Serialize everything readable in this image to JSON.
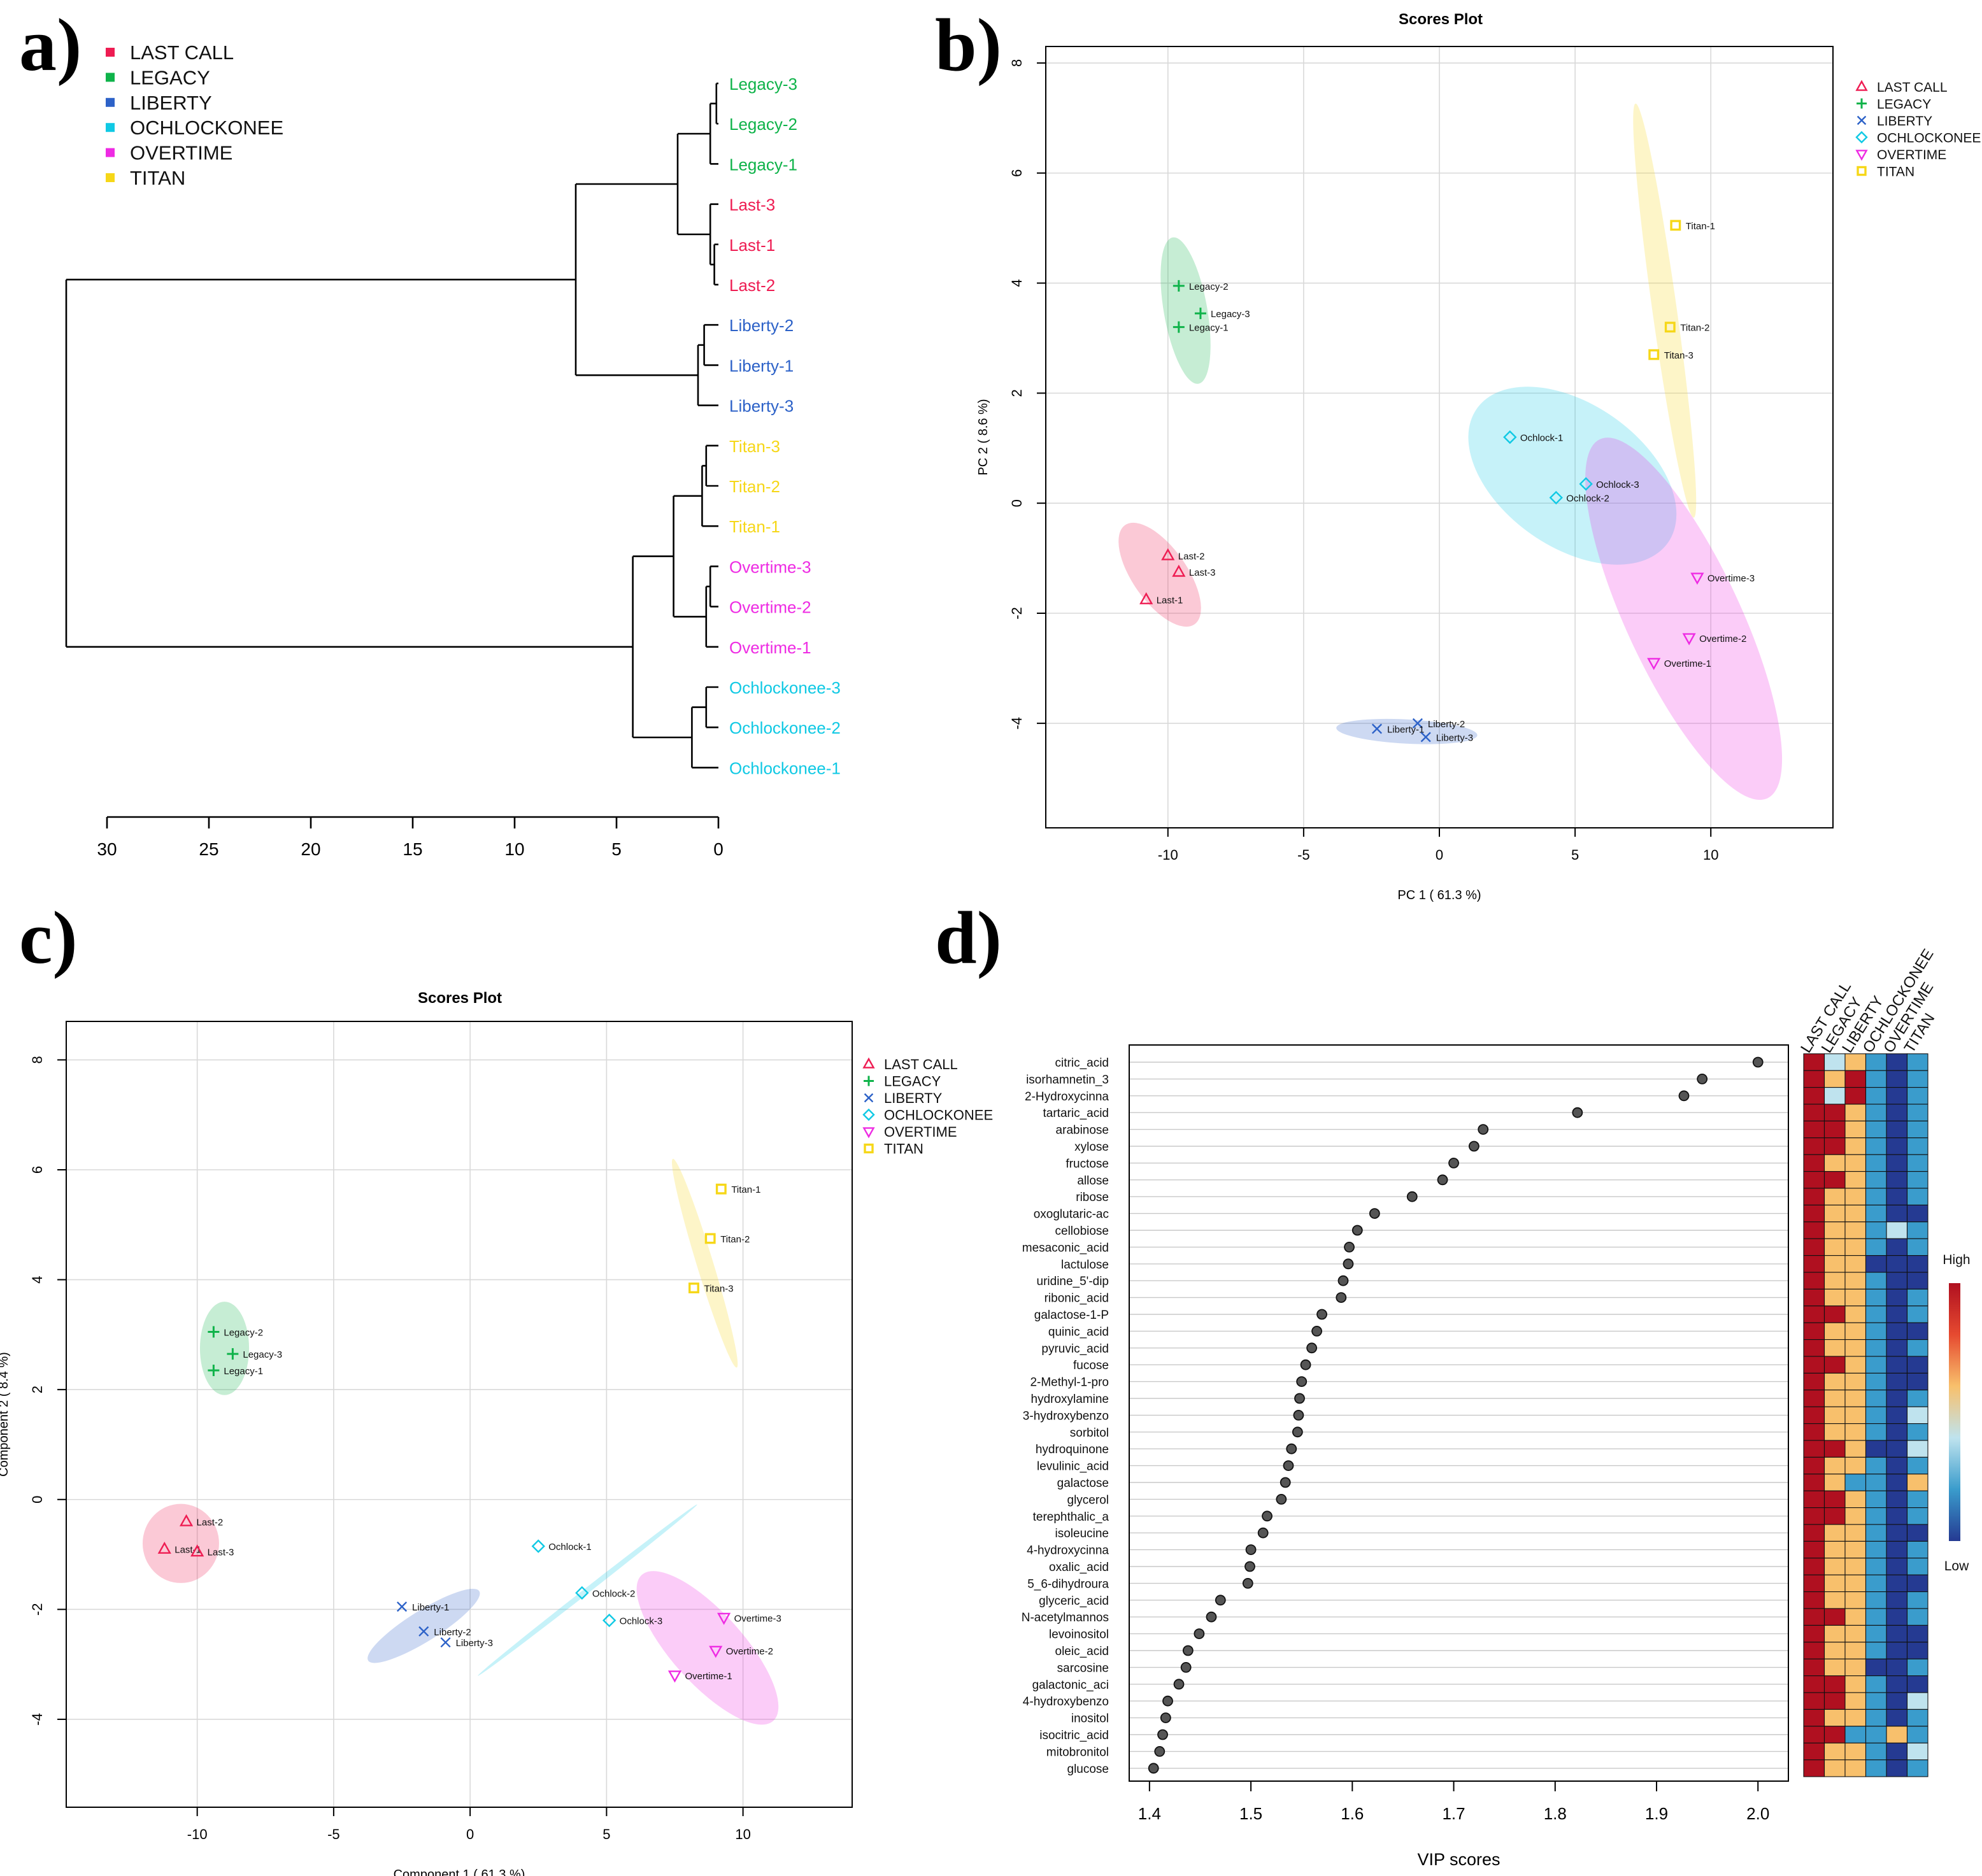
{
  "chart_data": [
    {
      "panel": "a)",
      "type": "dendrogram",
      "title": "",
      "legend": [
        {
          "label": "LAST CALL",
          "color": "#ee1c52"
        },
        {
          "label": "LEGACY",
          "color": "#0fb34a"
        },
        {
          "label": "LIBERTY",
          "color": "#2d62c8"
        },
        {
          "label": "OCHLOCKONEE",
          "color": "#10c9e4"
        },
        {
          "label": "OVERTIME",
          "color": "#ee2be3"
        },
        {
          "label": "TITAN",
          "color": "#f6d718"
        }
      ],
      "leaves": [
        {
          "label": "Legacy-3",
          "color": "#0fb34a"
        },
        {
          "label": "Legacy-2",
          "color": "#0fb34a"
        },
        {
          "label": "Legacy-1",
          "color": "#0fb34a"
        },
        {
          "label": "Last-3",
          "color": "#ee1c52"
        },
        {
          "label": "Last-1",
          "color": "#ee1c52"
        },
        {
          "label": "Last-2",
          "color": "#ee1c52"
        },
        {
          "label": "Liberty-2",
          "color": "#2d62c8"
        },
        {
          "label": "Liberty-1",
          "color": "#2d62c8"
        },
        {
          "label": "Liberty-3",
          "color": "#2d62c8"
        },
        {
          "label": "Titan-3",
          "color": "#f6d718"
        },
        {
          "label": "Titan-2",
          "color": "#f6d718"
        },
        {
          "label": "Titan-1",
          "color": "#f6d718"
        },
        {
          "label": "Overtime-3",
          "color": "#ee2be3"
        },
        {
          "label": "Overtime-2",
          "color": "#ee2be3"
        },
        {
          "label": "Overtime-1",
          "color": "#ee2be3"
        },
        {
          "label": "Ochlockonee-3",
          "color": "#10c9e4"
        },
        {
          "label": "Ochlockonee-2",
          "color": "#10c9e4"
        },
        {
          "label": "Ochlockonee-1",
          "color": "#10c9e4"
        }
      ],
      "merge_heights": {
        "Legacy-3+Legacy-2": 0.1,
        "+Legacy-1": 0.4,
        "Last-1+Last-2": 0.2,
        "+Last-3": 0.4,
        "Legacy+Last": 2.0,
        "Liberty-2+Liberty-1": 0.7,
        "+Liberty-3": 1.0,
        "LegacyLast+Liberty": 7.0,
        "Titan-3+Titan-2": 0.6,
        "+Titan-1": 0.8,
        "Overtime-3+Overtime-2": 0.4,
        "+Overtime-1": 0.6,
        "Titan+Overtime": 2.2,
        "Ochlockonee-3+Ochlockonee-2": 0.6,
        "+Ochlockonee-1": 1.3,
        "TitanOvertime+Ochlockonee": 4.2,
        "root": 32.0
      },
      "xlim": [
        0,
        31
      ],
      "ticks": [
        "30",
        "25",
        "20",
        "15",
        "10",
        "5",
        "0"
      ]
    },
    {
      "panel": "b)",
      "type": "scatter",
      "title": "Scores Plot",
      "xlabel": "PC 1 ( 61.3 %)",
      "ylabel": "PC 2 ( 8.6 %)",
      "xlim": [
        -14.5,
        14.5
      ],
      "ylim": [
        -5.9,
        8.3
      ],
      "xticks": [
        "-10",
        "-5",
        "0",
        "5",
        "10"
      ],
      "yticks": [
        "-4",
        "-2",
        "0",
        "2",
        "4",
        "6",
        "8"
      ],
      "legend": [
        {
          "label": "LAST CALL",
          "color": "#ee1c52",
          "marker": "triangle"
        },
        {
          "label": "LEGACY",
          "color": "#0fb34a",
          "marker": "plus"
        },
        {
          "label": "LIBERTY",
          "color": "#2d62c8",
          "marker": "cross"
        },
        {
          "label": "OCHLOCKONEE",
          "color": "#10c9e4",
          "marker": "diamond"
        },
        {
          "label": "OVERTIME",
          "color": "#ee2be3",
          "marker": "triangle-down"
        },
        {
          "label": "TITAN",
          "color": "#f6d718",
          "marker": "square"
        }
      ],
      "points": [
        {
          "label": "Last-2",
          "group": 0,
          "x": -10.0,
          "y": -0.95
        },
        {
          "label": "Last-3",
          "group": 0,
          "x": -9.6,
          "y": -1.25
        },
        {
          "label": "Last-1",
          "group": 0,
          "x": -10.8,
          "y": -1.75
        },
        {
          "label": "Legacy-2",
          "group": 1,
          "x": -9.6,
          "y": 3.95
        },
        {
          "label": "Legacy-3",
          "group": 1,
          "x": -8.8,
          "y": 3.45
        },
        {
          "label": "Legacy-1",
          "group": 1,
          "x": -9.6,
          "y": 3.2
        },
        {
          "label": "Liberty-2",
          "group": 2,
          "x": -0.8,
          "y": -4.0
        },
        {
          "label": "Liberty-1",
          "group": 2,
          "x": -2.3,
          "y": -4.1
        },
        {
          "label": "Liberty-3",
          "group": 2,
          "x": -0.5,
          "y": -4.25
        },
        {
          "label": "Ochlock-1",
          "group": 3,
          "x": 2.6,
          "y": 1.2
        },
        {
          "label": "Ochlock-3",
          "group": 3,
          "x": 5.4,
          "y": 0.35
        },
        {
          "label": "Ochlock-2",
          "group": 3,
          "x": 4.3,
          "y": 0.1
        },
        {
          "label": "Overtime-3",
          "group": 4,
          "x": 9.5,
          "y": -1.35
        },
        {
          "label": "Overtime-2",
          "group": 4,
          "x": 9.2,
          "y": -2.45
        },
        {
          "label": "Overtime-1",
          "group": 4,
          "x": 7.9,
          "y": -2.9
        },
        {
          "label": "Titan-1",
          "group": 5,
          "x": 8.7,
          "y": 5.05
        },
        {
          "label": "Titan-2",
          "group": 5,
          "x": 8.5,
          "y": 3.2
        },
        {
          "label": "Titan-3",
          "group": 5,
          "x": 7.9,
          "y": 2.7
        }
      ],
      "ellipses": [
        {
          "group": 0,
          "cx": -10.3,
          "cy": -1.3,
          "rx": 1.0,
          "ry": 1.1,
          "angle": 35
        },
        {
          "group": 1,
          "cx": -9.35,
          "cy": 3.5,
          "rx": 0.8,
          "ry": 1.35,
          "angle": 10
        },
        {
          "group": 2,
          "cx": -1.2,
          "cy": -4.15,
          "rx": 2.6,
          "ry": 0.22,
          "angle": -3
        },
        {
          "group": 3,
          "cx": 4.9,
          "cy": 0.5,
          "rx": 4.3,
          "ry": 1.3,
          "angle": -35
        },
        {
          "group": 4,
          "cx": 9.0,
          "cy": -2.1,
          "rx": 2.1,
          "ry": 3.6,
          "angle": 25
        },
        {
          "group": 5,
          "cx": 8.3,
          "cy": 3.5,
          "rx": 0.45,
          "ry": 3.8,
          "angle": 8
        }
      ]
    },
    {
      "panel": "c)",
      "type": "scatter",
      "title": "Scores Plot",
      "xlabel": "Component 1 ( 61.3 %)",
      "ylabel": "Component 2 ( 8.4 %)",
      "xlim": [
        -14.8,
        14.0
      ],
      "ylim": [
        -5.6,
        8.7
      ],
      "xticks": [
        "-10",
        "-5",
        "0",
        "5",
        "10"
      ],
      "yticks": [
        "-4",
        "-2",
        "0",
        "2",
        "4",
        "6",
        "8"
      ],
      "legend": [
        {
          "label": "LAST CALL",
          "color": "#ee1c52",
          "marker": "triangle"
        },
        {
          "label": "LEGACY",
          "color": "#0fb34a",
          "marker": "plus"
        },
        {
          "label": "LIBERTY",
          "color": "#2d62c8",
          "marker": "cross"
        },
        {
          "label": "OCHLOCKONEE",
          "color": "#10c9e4",
          "marker": "diamond"
        },
        {
          "label": "OVERTIME",
          "color": "#ee2be3",
          "marker": "triangle-down"
        },
        {
          "label": "TITAN",
          "color": "#f6d718",
          "marker": "square"
        }
      ],
      "points": [
        {
          "label": "Last-2",
          "group": 0,
          "x": -10.4,
          "y": -0.4
        },
        {
          "label": "Last-1",
          "group": 0,
          "x": -11.2,
          "y": -0.9
        },
        {
          "label": "Last-3",
          "group": 0,
          "x": -10.0,
          "y": -0.95
        },
        {
          "label": "Legacy-2",
          "group": 1,
          "x": -9.4,
          "y": 3.05
        },
        {
          "label": "Legacy-3",
          "group": 1,
          "x": -8.7,
          "y": 2.65
        },
        {
          "label": "Legacy-1",
          "group": 1,
          "x": -9.4,
          "y": 2.35
        },
        {
          "label": "Liberty-1",
          "group": 2,
          "x": -2.5,
          "y": -1.95
        },
        {
          "label": "Liberty-2",
          "group": 2,
          "x": -1.7,
          "y": -2.4
        },
        {
          "label": "Liberty-3",
          "group": 2,
          "x": -0.9,
          "y": -2.6
        },
        {
          "label": "Ochlock-1",
          "group": 3,
          "x": 2.5,
          "y": -0.85
        },
        {
          "label": "Ochlock-2",
          "group": 3,
          "x": 4.1,
          "y": -1.7
        },
        {
          "label": "Ochlock-3",
          "group": 3,
          "x": 5.1,
          "y": -2.2
        },
        {
          "label": "Overtime-3",
          "group": 4,
          "x": 9.3,
          "y": -2.15
        },
        {
          "label": "Overtime-2",
          "group": 4,
          "x": 9.0,
          "y": -2.75
        },
        {
          "label": "Overtime-1",
          "group": 4,
          "x": 7.5,
          "y": -3.2
        },
        {
          "label": "Titan-1",
          "group": 5,
          "x": 9.2,
          "y": 5.65
        },
        {
          "label": "Titan-2",
          "group": 5,
          "x": 8.8,
          "y": 4.75
        },
        {
          "label": "Titan-3",
          "group": 5,
          "x": 8.2,
          "y": 3.85
        }
      ],
      "ellipses": [
        {
          "group": 0,
          "cx": -10.6,
          "cy": -0.8,
          "rx": 1.4,
          "ry": 0.72,
          "angle": 0
        },
        {
          "group": 1,
          "cx": -9.0,
          "cy": 2.75,
          "rx": 0.9,
          "ry": 0.85,
          "angle": 0
        },
        {
          "group": 2,
          "cx": -1.7,
          "cy": -2.3,
          "rx": 2.4,
          "ry": 0.28,
          "angle": 32
        },
        {
          "group": 3,
          "cx": 4.3,
          "cy": -1.65,
          "rx": 5.1,
          "ry": 0.05,
          "angle": 38
        },
        {
          "group": 4,
          "cx": 8.7,
          "cy": -2.7,
          "rx": 3.6,
          "ry": 0.65,
          "angle": -48
        },
        {
          "group": 5,
          "cx": 8.6,
          "cy": 4.3,
          "rx": 4.0,
          "ry": 0.15,
          "angle": -73
        }
      ]
    },
    {
      "panel": "d)",
      "type": "dot+heatmap",
      "title": "",
      "xlabel": "VIP scores",
      "xlim": [
        1.38,
        2.03
      ],
      "xticks": [
        "1.4",
        "1.5",
        "1.6",
        "1.7",
        "1.8",
        "1.9",
        "2.0"
      ],
      "features": [
        {
          "name": "citric_acid",
          "vip": 2.0
        },
        {
          "name": "isorhamnetin_3",
          "vip": 1.945
        },
        {
          "name": "2-Hydroxycinna",
          "vip": 1.927
        },
        {
          "name": "tartaric_acid",
          "vip": 1.822
        },
        {
          "name": "arabinose",
          "vip": 1.729
        },
        {
          "name": "xylose",
          "vip": 1.72
        },
        {
          "name": "fructose",
          "vip": 1.7
        },
        {
          "name": "allose",
          "vip": 1.689
        },
        {
          "name": "ribose",
          "vip": 1.659
        },
        {
          "name": "oxoglutaric-ac",
          "vip": 1.622
        },
        {
          "name": "cellobiose",
          "vip": 1.605
        },
        {
          "name": "mesaconic_acid",
          "vip": 1.597
        },
        {
          "name": "lactulose",
          "vip": 1.596
        },
        {
          "name": "uridine_5'-dip",
          "vip": 1.591
        },
        {
          "name": "ribonic_acid",
          "vip": 1.589
        },
        {
          "name": "galactose-1-P",
          "vip": 1.57
        },
        {
          "name": "quinic_acid",
          "vip": 1.565
        },
        {
          "name": "pyruvic_acid",
          "vip": 1.56
        },
        {
          "name": "fucose",
          "vip": 1.554
        },
        {
          "name": "2-Methyl-1-pro",
          "vip": 1.55
        },
        {
          "name": "hydroxylamine",
          "vip": 1.548
        },
        {
          "name": "3-hydroxybenzo",
          "vip": 1.547
        },
        {
          "name": "sorbitol",
          "vip": 1.546
        },
        {
          "name": "hydroquinone",
          "vip": 1.54
        },
        {
          "name": "levulinic_acid",
          "vip": 1.537
        },
        {
          "name": "galactose",
          "vip": 1.534
        },
        {
          "name": "glycerol",
          "vip": 1.53
        },
        {
          "name": "terephthalic_a",
          "vip": 1.516
        },
        {
          "name": "isoleucine",
          "vip": 1.512
        },
        {
          "name": "4-hydroxycinna",
          "vip": 1.5
        },
        {
          "name": "oxalic_acid",
          "vip": 1.499
        },
        {
          "name": "5_6-dihydroura",
          "vip": 1.497
        },
        {
          "name": "glyceric_acid",
          "vip": 1.47
        },
        {
          "name": "N-acetylmannos",
          "vip": 1.461
        },
        {
          "name": "levoinositol",
          "vip": 1.449
        },
        {
          "name": "oleic_acid",
          "vip": 1.438
        },
        {
          "name": "sarcosine",
          "vip": 1.436
        },
        {
          "name": "galactonic_aci",
          "vip": 1.429
        },
        {
          "name": "4-hydroxybenzo",
          "vip": 1.418
        },
        {
          "name": "inositol",
          "vip": 1.416
        },
        {
          "name": "isocitric_acid",
          "vip": 1.413
        },
        {
          "name": "mitobronitol",
          "vip": 1.41
        },
        {
          "name": "glucose",
          "vip": 1.404
        }
      ],
      "heatmap_columns": [
        "LAST CALL",
        "LEGACY",
        "LIBERTY",
        "OCHLOCKONEE",
        "OVERTIME",
        "TITAN"
      ],
      "heatmap_levels": [
        [
          4,
          2,
          3,
          1,
          0,
          1
        ],
        [
          4,
          3,
          4,
          1,
          0,
          1
        ],
        [
          4,
          2,
          4,
          1,
          0,
          1
        ],
        [
          4,
          4,
          3,
          1,
          0,
          1
        ],
        [
          4,
          4,
          3,
          1,
          0,
          1
        ],
        [
          4,
          4,
          3,
          1,
          0,
          1
        ],
        [
          4,
          3,
          3,
          1,
          0,
          1
        ],
        [
          4,
          4,
          3,
          1,
          0,
          1
        ],
        [
          4,
          3,
          3,
          1,
          0,
          1
        ],
        [
          4,
          3,
          3,
          1,
          0,
          0
        ],
        [
          4,
          3,
          3,
          1,
          2,
          1
        ],
        [
          4,
          3,
          3,
          1,
          0,
          1
        ],
        [
          4,
          3,
          3,
          0,
          0,
          0
        ],
        [
          4,
          3,
          3,
          1,
          0,
          0
        ],
        [
          4,
          3,
          3,
          1,
          0,
          1
        ],
        [
          4,
          4,
          3,
          1,
          0,
          1
        ],
        [
          4,
          3,
          3,
          1,
          0,
          0
        ],
        [
          4,
          3,
          3,
          1,
          0,
          1
        ],
        [
          4,
          4,
          3,
          1,
          0,
          0
        ],
        [
          4,
          3,
          3,
          1,
          0,
          0
        ],
        [
          4,
          3,
          3,
          1,
          0,
          1
        ],
        [
          4,
          3,
          3,
          1,
          0,
          2
        ],
        [
          4,
          3,
          3,
          1,
          0,
          1
        ],
        [
          4,
          4,
          3,
          0,
          0,
          2
        ],
        [
          4,
          3,
          3,
          1,
          0,
          1
        ],
        [
          4,
          3,
          1,
          1,
          0,
          3
        ],
        [
          4,
          4,
          3,
          1,
          0,
          1
        ],
        [
          4,
          4,
          3,
          1,
          0,
          1
        ],
        [
          4,
          3,
          3,
          1,
          0,
          0
        ],
        [
          4,
          3,
          3,
          1,
          0,
          1
        ],
        [
          4,
          3,
          3,
          1,
          0,
          1
        ],
        [
          4,
          3,
          3,
          1,
          0,
          0
        ],
        [
          4,
          3,
          3,
          1,
          0,
          1
        ],
        [
          4,
          4,
          3,
          1,
          0,
          1
        ],
        [
          4,
          3,
          3,
          1,
          0,
          0
        ],
        [
          4,
          3,
          3,
          1,
          0,
          0
        ],
        [
          4,
          3,
          3,
          0,
          0,
          1
        ],
        [
          4,
          4,
          3,
          1,
          0,
          0
        ],
        [
          4,
          4,
          3,
          1,
          0,
          2
        ],
        [
          4,
          3,
          3,
          1,
          0,
          1
        ],
        [
          4,
          4,
          1,
          1,
          3,
          1
        ],
        [
          4,
          3,
          3,
          1,
          0,
          2
        ],
        [
          4,
          3,
          3,
          1,
          0,
          1
        ]
      ],
      "colorbar": {
        "high": "High",
        "low": "Low"
      }
    }
  ],
  "panel_labels": [
    "a)",
    "b)",
    "c)",
    "d)"
  ],
  "colors": {
    "heat": [
      "#253a92",
      "#3a9ccc",
      "#bfe3ee",
      "#f8c06c",
      "#e64a30",
      "#b01020"
    ],
    "dot": "#555555"
  }
}
